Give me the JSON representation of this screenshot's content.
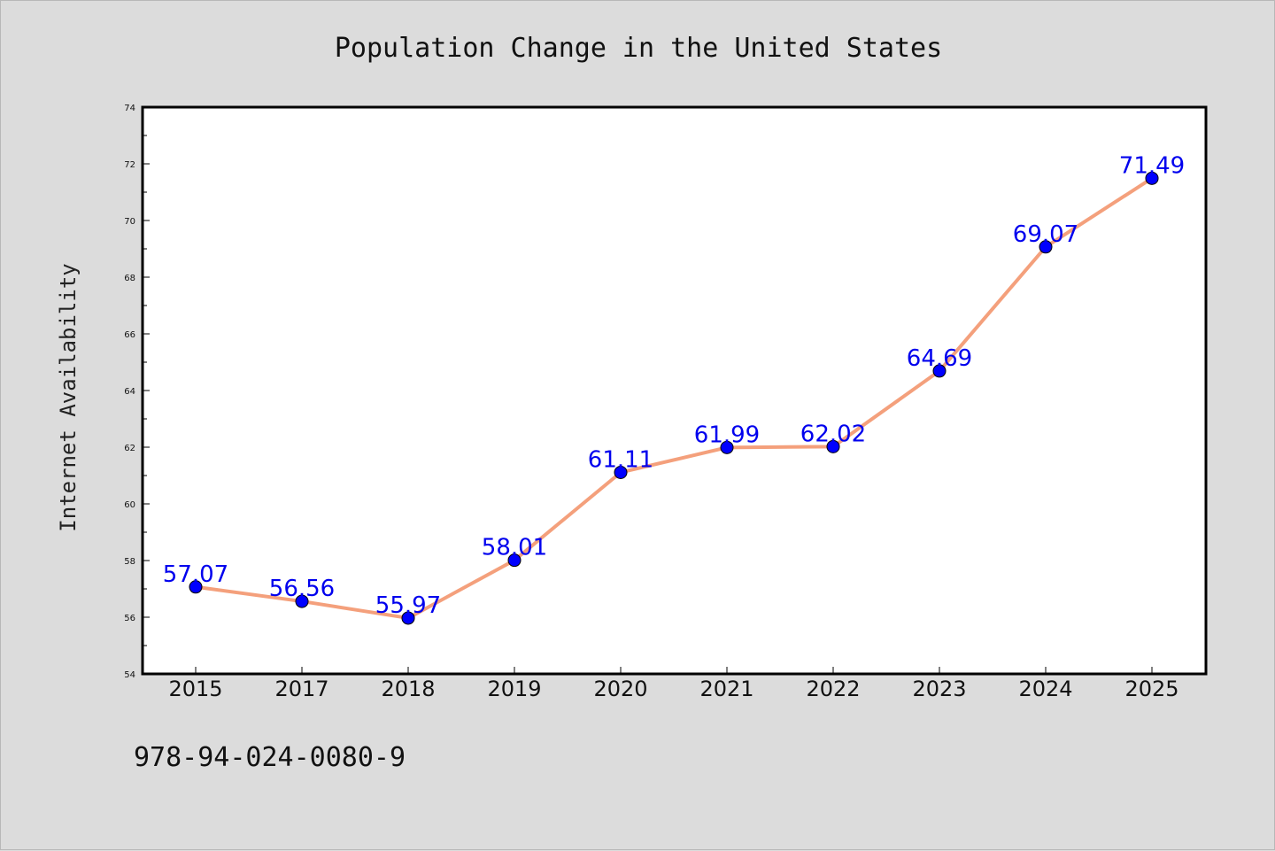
{
  "chart_data": {
    "type": "line",
    "title": "Population Change in the United States",
    "xlabel": "",
    "ylabel": "Internet Availability",
    "categories": [
      "2015",
      "2017",
      "2018",
      "2019",
      "2020",
      "2021",
      "2022",
      "2023",
      "2024",
      "2025"
    ],
    "values": [
      57.07,
      56.56,
      55.97,
      58.01,
      61.11,
      61.99,
      62.02,
      64.69,
      69.07,
      71.49
    ],
    "data_labels": [
      "57.07",
      "56.56",
      "55.97",
      "58.01",
      "61.11",
      "61.99",
      "62.02",
      "64.69",
      "69.07",
      "71.49"
    ],
    "ylim": [
      54,
      74
    ],
    "yticks": [
      54,
      56,
      58,
      60,
      62,
      64,
      66,
      68,
      70,
      72,
      74
    ],
    "grid": false,
    "legend": "none",
    "line_color": "#f4a07c",
    "marker_color": "#0000ff",
    "label_color": "#0000ee",
    "background": "#dcdcdc",
    "plot_background": "#ffffff"
  },
  "footnote": "978-94-024-0080-9"
}
